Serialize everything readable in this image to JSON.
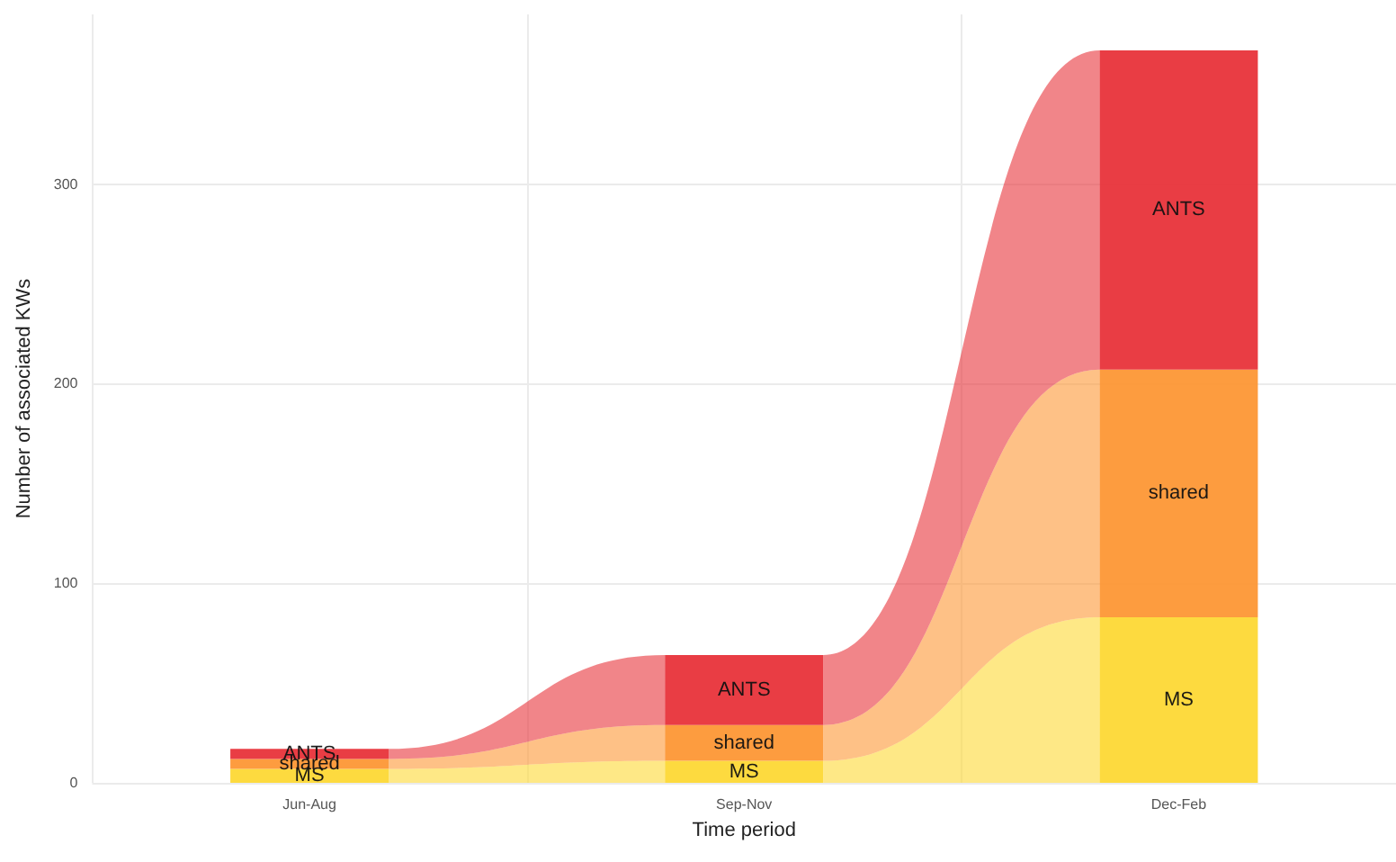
{
  "chart_data": {
    "type": "bar",
    "stacked": true,
    "xlabel": "Time period",
    "ylabel": "Number of associated KWs",
    "categories": [
      "Jun-Aug",
      "Sep-Nov",
      "Dec-Feb"
    ],
    "series": [
      {
        "name": "MS",
        "color": "#fdd835",
        "values": [
          7,
          11,
          83
        ]
      },
      {
        "name": "shared",
        "color": "#fd9735",
        "values": [
          5,
          18,
          124
        ]
      },
      {
        "name": "ANTS",
        "color": "#e8333a",
        "values": [
          5,
          35,
          160
        ]
      }
    ],
    "ylim": [
      0,
      385
    ],
    "yticks": [
      0,
      100,
      200,
      300
    ],
    "grid": true,
    "legend": false
  }
}
